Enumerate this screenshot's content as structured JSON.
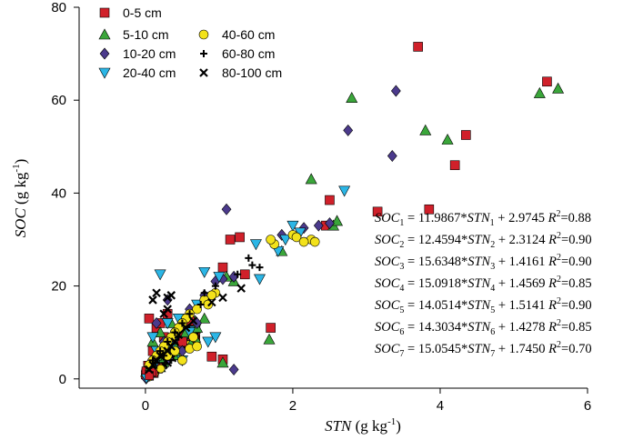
{
  "chart_data": {
    "type": "scatter",
    "xlabel": "STN",
    "xlabel_unit": "(g kg",
    "ylabel": "SOC",
    "ylabel_unit": "(g kg",
    "unit_exponent": "-1",
    "unit_close": ")",
    "xlim": [
      -0.9,
      6.0
    ],
    "ylim": [
      -2,
      80
    ],
    "xticks": [
      0,
      2,
      4,
      6
    ],
    "yticks": [
      0,
      20,
      40,
      60,
      80
    ],
    "series": [
      {
        "name": "0-5 cm",
        "marker": "square",
        "color": "#d0202a",
        "points": [
          [
            3.7,
            71.5
          ],
          [
            5.45,
            64
          ],
          [
            4.35,
            52.5
          ],
          [
            4.2,
            46
          ],
          [
            3.85,
            36.5
          ],
          [
            3.15,
            36
          ],
          [
            2.5,
            38.5
          ],
          [
            2.45,
            33
          ],
          [
            1.15,
            30
          ],
          [
            1.28,
            30.5
          ],
          [
            1.05,
            24
          ],
          [
            1.35,
            22.5
          ],
          [
            1.7,
            11
          ],
          [
            0.9,
            4.8
          ],
          [
            1.05,
            4.2
          ],
          [
            0.05,
            13
          ],
          [
            0.15,
            11
          ],
          [
            0.25,
            9
          ],
          [
            0.3,
            14
          ],
          [
            0.45,
            10
          ],
          [
            0.5,
            8
          ],
          [
            0.1,
            6
          ],
          [
            0.35,
            8
          ],
          [
            0.2,
            12
          ],
          [
            0.6,
            12.5
          ]
        ]
      },
      {
        "name": "5-10 cm",
        "marker": "triangle",
        "color": "#3aa63a",
        "points": [
          [
            5.6,
            62.5
          ],
          [
            5.35,
            61.5
          ],
          [
            2.8,
            60.5
          ],
          [
            3.8,
            53.5
          ],
          [
            4.1,
            51.5
          ],
          [
            2.25,
            43
          ],
          [
            2.55,
            33
          ],
          [
            2.6,
            34
          ],
          [
            1.85,
            27.5
          ],
          [
            1.2,
            21
          ],
          [
            1.1,
            22
          ],
          [
            1.68,
            8.5
          ],
          [
            1.05,
            3.5
          ],
          [
            0.1,
            8
          ],
          [
            0.2,
            10
          ],
          [
            0.35,
            12
          ],
          [
            0.55,
            10
          ],
          [
            0.7,
            11
          ],
          [
            0.15,
            5
          ],
          [
            0.4,
            7
          ],
          [
            0.8,
            13
          ],
          [
            0.25,
            6
          ]
        ]
      },
      {
        "name": "10-20 cm",
        "marker": "diamond",
        "color": "#4b3a8c",
        "points": [
          [
            3.4,
            62
          ],
          [
            2.75,
            53.5
          ],
          [
            3.35,
            48
          ],
          [
            1.1,
            36.5
          ],
          [
            2.5,
            33.5
          ],
          [
            2.35,
            33
          ],
          [
            2.15,
            32.5
          ],
          [
            1.85,
            31
          ],
          [
            1.2,
            22
          ],
          [
            1.05,
            21.5
          ],
          [
            0.95,
            21
          ],
          [
            1.2,
            2
          ],
          [
            0.3,
            17
          ],
          [
            0.15,
            12
          ],
          [
            0.4,
            10
          ],
          [
            0.6,
            15
          ],
          [
            0.7,
            12
          ],
          [
            0.8,
            18
          ],
          [
            0.25,
            8
          ],
          [
            0.5,
            6
          ],
          [
            0.1,
            4
          ]
        ]
      },
      {
        "name": "20-40 cm",
        "marker": "tri-down",
        "color": "#2bb6e6",
        "points": [
          [
            2.7,
            40.5
          ],
          [
            2.0,
            33
          ],
          [
            2.1,
            31.5
          ],
          [
            1.9,
            30
          ],
          [
            1.5,
            29
          ],
          [
            1.8,
            27.5
          ],
          [
            0.8,
            23
          ],
          [
            1.0,
            22
          ],
          [
            0.2,
            22.5
          ],
          [
            1.55,
            21.5
          ],
          [
            0.85,
            8
          ],
          [
            0.95,
            9
          ],
          [
            0.1,
            9
          ],
          [
            0.3,
            12
          ],
          [
            0.45,
            13
          ],
          [
            0.6,
            10
          ],
          [
            0.7,
            16
          ],
          [
            0.15,
            6
          ],
          [
            0.35,
            7
          ],
          [
            0.5,
            4
          ]
        ]
      },
      {
        "name": "40-60 cm",
        "marker": "circle",
        "color": "#f3e21a",
        "points": [
          [
            2.0,
            31
          ],
          [
            2.05,
            30.5
          ],
          [
            2.25,
            30
          ],
          [
            2.3,
            29.5
          ],
          [
            2.15,
            29.5
          ],
          [
            1.75,
            29
          ],
          [
            1.7,
            30
          ],
          [
            0.95,
            18.5
          ],
          [
            0.9,
            18
          ],
          [
            0.8,
            17
          ],
          [
            0.85,
            16
          ],
          [
            0.7,
            15
          ],
          [
            0.6,
            14
          ],
          [
            0.55,
            13
          ],
          [
            0.5,
            12
          ],
          [
            0.45,
            11
          ],
          [
            0.4,
            10
          ],
          [
            0.35,
            9
          ],
          [
            0.3,
            8
          ],
          [
            0.25,
            7
          ],
          [
            0.2,
            6
          ],
          [
            0.15,
            5
          ],
          [
            0.1,
            4
          ],
          [
            0.05,
            3
          ],
          [
            0.6,
            6.5
          ],
          [
            0.5,
            4
          ],
          [
            0.7,
            7
          ],
          [
            0.4,
            6
          ],
          [
            0.65,
            9
          ],
          [
            0.3,
            5
          ]
        ]
      },
      {
        "name": "60-80 cm",
        "marker": "plus",
        "color": "#000000",
        "points": [
          [
            1.4,
            26
          ],
          [
            1.45,
            24.5
          ],
          [
            1.55,
            24
          ],
          [
            1.25,
            22.5
          ],
          [
            0.95,
            20
          ],
          [
            0.8,
            18.5
          ],
          [
            0.6,
            14
          ],
          [
            0.5,
            12
          ],
          [
            0.4,
            10
          ],
          [
            0.3,
            8
          ],
          [
            0.2,
            6
          ],
          [
            0.1,
            4
          ],
          [
            0.75,
            16
          ],
          [
            0.45,
            9
          ],
          [
            0.25,
            5
          ]
        ]
      },
      {
        "name": "80-100 cm",
        "marker": "cross",
        "color": "#000000",
        "points": [
          [
            0.1,
            17
          ],
          [
            0.15,
            18.5
          ],
          [
            0.3,
            17.5
          ],
          [
            0.35,
            18
          ],
          [
            0.25,
            14
          ],
          [
            0.3,
            15
          ],
          [
            1.3,
            19.5
          ],
          [
            1.05,
            17.5
          ],
          [
            0.9,
            16.5
          ],
          [
            0.65,
            12.5
          ],
          [
            0.55,
            11
          ],
          [
            0.45,
            9.5
          ],
          [
            0.4,
            8
          ],
          [
            0.35,
            7
          ],
          [
            0.3,
            6
          ],
          [
            0.2,
            5
          ],
          [
            0.15,
            4
          ],
          [
            0.1,
            3
          ],
          [
            0.05,
            2
          ]
        ]
      }
    ],
    "cluster": {
      "n": 260,
      "x_max": 0.7
    },
    "equations": [
      {
        "sub": "1",
        "text": " = 11.9867*",
        "rest": " + 2.9745  ",
        "r2": "=0.88"
      },
      {
        "sub": "2",
        "text": " = 12.4594*",
        "rest": " + 2.3124  ",
        "r2": "=0.90"
      },
      {
        "sub": "3",
        "text": " = 15.6348*",
        "rest": " + 1.4161  ",
        "r2": "=0.90"
      },
      {
        "sub": "4",
        "text": " = 15.0918*",
        "rest": " + 1.4569  ",
        "r2": "=0.85"
      },
      {
        "sub": "5",
        "text": " = 14.0514*",
        "rest": " + 1.5141  ",
        "r2": "=0.90"
      },
      {
        "sub": "6",
        "text": " = 14.3034*",
        "rest": " + 1.4278  ",
        "r2": "=0.85"
      },
      {
        "sub": "7",
        "text": "  = 15.0545*",
        "rest": " + 1.7450  ",
        "r2": "=0.70"
      }
    ],
    "eq_lhs": "SOC",
    "eq_var": "STN",
    "r2_label": "R",
    "r2_exp": "2"
  }
}
